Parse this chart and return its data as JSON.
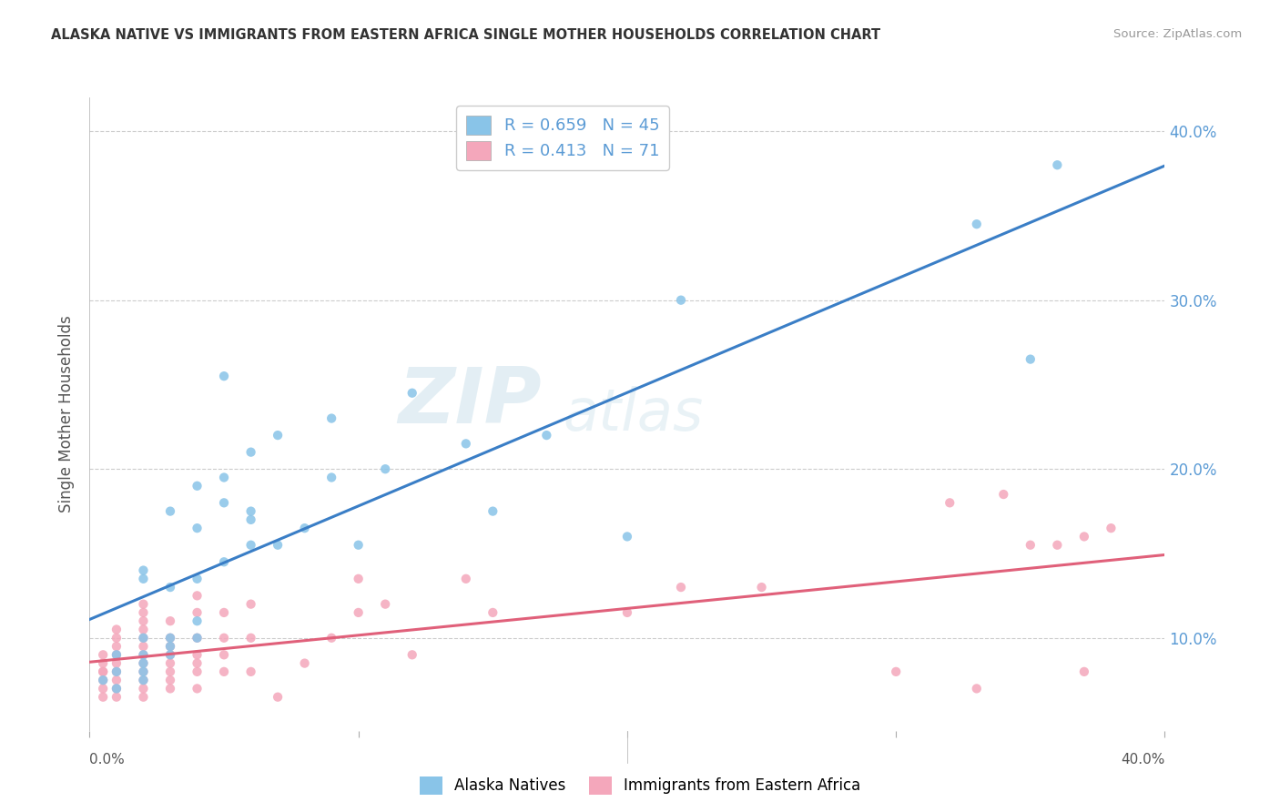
{
  "title": "ALASKA NATIVE VS IMMIGRANTS FROM EASTERN AFRICA SINGLE MOTHER HOUSEHOLDS CORRELATION CHART",
  "source": "Source: ZipAtlas.com",
  "ylabel": "Single Mother Households",
  "xlim": [
    0.0,
    0.4
  ],
  "ylim": [
    0.045,
    0.42
  ],
  "yticks": [
    0.1,
    0.2,
    0.3,
    0.4
  ],
  "ytick_labels": [
    "10.0%",
    "20.0%",
    "30.0%",
    "40.0%"
  ],
  "blue_R": 0.659,
  "blue_N": 45,
  "pink_R": 0.413,
  "pink_N": 71,
  "blue_color": "#89c4e8",
  "pink_color": "#f4a7bb",
  "blue_line_color": "#3a7ec6",
  "pink_line_color": "#e0607a",
  "watermark_zip": "ZIP",
  "watermark_atlas": "atlas",
  "legend_label_blue": "Alaska Natives",
  "legend_label_pink": "Immigrants from Eastern Africa",
  "blue_scatter_x": [
    0.005,
    0.01,
    0.01,
    0.01,
    0.02,
    0.02,
    0.02,
    0.02,
    0.02,
    0.02,
    0.02,
    0.03,
    0.03,
    0.03,
    0.03,
    0.03,
    0.04,
    0.04,
    0.04,
    0.04,
    0.04,
    0.05,
    0.05,
    0.05,
    0.05,
    0.06,
    0.06,
    0.06,
    0.06,
    0.07,
    0.07,
    0.08,
    0.09,
    0.09,
    0.1,
    0.11,
    0.12,
    0.14,
    0.15,
    0.17,
    0.2,
    0.22,
    0.33,
    0.35,
    0.36
  ],
  "blue_scatter_y": [
    0.075,
    0.07,
    0.08,
    0.09,
    0.075,
    0.08,
    0.085,
    0.09,
    0.1,
    0.135,
    0.14,
    0.09,
    0.095,
    0.1,
    0.13,
    0.175,
    0.1,
    0.11,
    0.135,
    0.165,
    0.19,
    0.145,
    0.18,
    0.195,
    0.255,
    0.155,
    0.17,
    0.175,
    0.21,
    0.155,
    0.22,
    0.165,
    0.195,
    0.23,
    0.155,
    0.2,
    0.245,
    0.215,
    0.175,
    0.22,
    0.16,
    0.3,
    0.345,
    0.265,
    0.38
  ],
  "pink_scatter_x": [
    0.005,
    0.005,
    0.005,
    0.005,
    0.005,
    0.005,
    0.005,
    0.01,
    0.01,
    0.01,
    0.01,
    0.01,
    0.01,
    0.01,
    0.01,
    0.01,
    0.02,
    0.02,
    0.02,
    0.02,
    0.02,
    0.02,
    0.02,
    0.02,
    0.02,
    0.02,
    0.02,
    0.02,
    0.03,
    0.03,
    0.03,
    0.03,
    0.03,
    0.03,
    0.03,
    0.03,
    0.04,
    0.04,
    0.04,
    0.04,
    0.04,
    0.04,
    0.04,
    0.05,
    0.05,
    0.05,
    0.05,
    0.06,
    0.06,
    0.06,
    0.07,
    0.08,
    0.09,
    0.1,
    0.1,
    0.11,
    0.12,
    0.14,
    0.15,
    0.2,
    0.22,
    0.25,
    0.3,
    0.32,
    0.33,
    0.34,
    0.35,
    0.36,
    0.37,
    0.37,
    0.38
  ],
  "pink_scatter_y": [
    0.065,
    0.07,
    0.075,
    0.08,
    0.08,
    0.085,
    0.09,
    0.065,
    0.07,
    0.075,
    0.08,
    0.085,
    0.09,
    0.095,
    0.1,
    0.105,
    0.065,
    0.07,
    0.075,
    0.08,
    0.085,
    0.09,
    0.095,
    0.1,
    0.105,
    0.11,
    0.115,
    0.12,
    0.07,
    0.075,
    0.08,
    0.085,
    0.09,
    0.095,
    0.1,
    0.11,
    0.07,
    0.08,
    0.085,
    0.09,
    0.1,
    0.115,
    0.125,
    0.08,
    0.09,
    0.1,
    0.115,
    0.08,
    0.1,
    0.12,
    0.065,
    0.085,
    0.1,
    0.115,
    0.135,
    0.12,
    0.09,
    0.135,
    0.115,
    0.115,
    0.13,
    0.13,
    0.08,
    0.18,
    0.07,
    0.185,
    0.155,
    0.155,
    0.16,
    0.08,
    0.165
  ],
  "background_color": "#ffffff",
  "grid_color": "#cccccc"
}
